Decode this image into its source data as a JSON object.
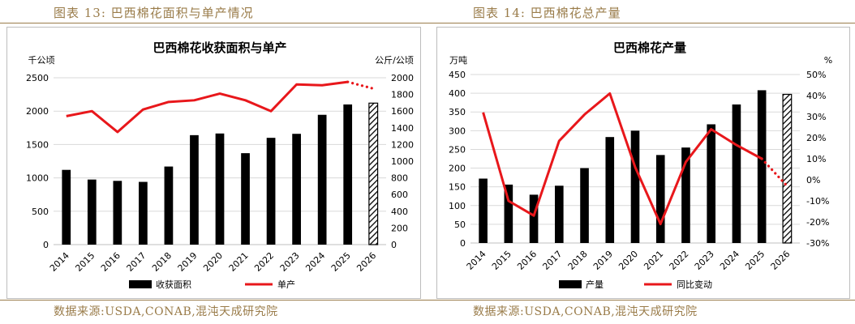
{
  "captions": {
    "left": "图表 13:  巴西棉花面积与单产情况",
    "right": "图表 14:  巴西棉花总产量"
  },
  "sources": {
    "left": "数据来源:USDA,CONAB,混沌天成研究院",
    "right": "数据来源:USDA,CONAB,混沌天成研究院"
  },
  "colors": {
    "bar": "#000000",
    "line": "#e8171b",
    "caption": "#9a7c4a",
    "grid": "#d9d9d9"
  },
  "chart_data": [
    {
      "type": "bar",
      "title": "巴西棉花收获面积与单产",
      "ylabel_left": "千公顷",
      "ylabel_right": "公斤/公顷",
      "categories": [
        "2014",
        "2015",
        "2016",
        "2017",
        "2018",
        "2019",
        "2020",
        "2021",
        "2022",
        "2023",
        "2024",
        "2025",
        "2026"
      ],
      "ylim_left": [
        0,
        2500
      ],
      "yticks_left": [
        0,
        500,
        1000,
        1500,
        2000,
        2500
      ],
      "ylim_right": [
        0,
        2000
      ],
      "yticks_right": [
        0,
        200,
        400,
        600,
        800,
        1000,
        1200,
        1400,
        1600,
        1800,
        2000
      ],
      "series": [
        {
          "name": "收获面积",
          "axis": "left",
          "kind": "bar",
          "values": [
            1120,
            975,
            955,
            940,
            1170,
            1640,
            1665,
            1370,
            1600,
            1660,
            1945,
            2100,
            2120
          ],
          "hatched_from_index": 12
        },
        {
          "name": "单产",
          "axis": "right",
          "kind": "line",
          "values": [
            1540,
            1600,
            1350,
            1620,
            1710,
            1730,
            1810,
            1730,
            1600,
            1920,
            1910,
            1950,
            1870
          ],
          "dotted_from_index": 11
        }
      ],
      "legend": [
        "收获面积",
        "单产"
      ],
      "legend_position": "bottom",
      "grid": true
    },
    {
      "type": "bar",
      "title": "巴西棉花产量",
      "ylabel_left": "万吨",
      "ylabel_right": "%",
      "categories": [
        "2014",
        "2015",
        "2016",
        "2017",
        "2018",
        "2019",
        "2020",
        "2021",
        "2022",
        "2023",
        "2024",
        "2025",
        "2026"
      ],
      "ylim_left": [
        0,
        450
      ],
      "yticks_left": [
        0,
        50,
        100,
        150,
        200,
        250,
        300,
        350,
        400,
        450
      ],
      "ylim_right": [
        -30,
        50
      ],
      "yticks_right": [
        "-30%",
        "-20%",
        "-10%",
        "0%",
        "10%",
        "20%",
        "30%",
        "40%",
        "50%"
      ],
      "yticks_right_values": [
        -30,
        -20,
        -10,
        0,
        10,
        20,
        30,
        40,
        50
      ],
      "series": [
        {
          "name": "产量",
          "axis": "left",
          "kind": "bar",
          "values": [
            172,
            156,
            129,
            153,
            200,
            283,
            300,
            235,
            255,
            317,
            370,
            408,
            397
          ],
          "hatched_from_index": 12
        },
        {
          "name": "同比变动",
          "axis": "right",
          "kind": "line",
          "values": [
            32,
            -10,
            -17,
            18.5,
            31,
            41,
            6,
            -21,
            8.5,
            24,
            16.5,
            10,
            -3
          ],
          "dotted_from_index": 11
        }
      ],
      "legend": [
        "产量",
        "同比变动"
      ],
      "legend_position": "bottom",
      "grid": true
    }
  ]
}
